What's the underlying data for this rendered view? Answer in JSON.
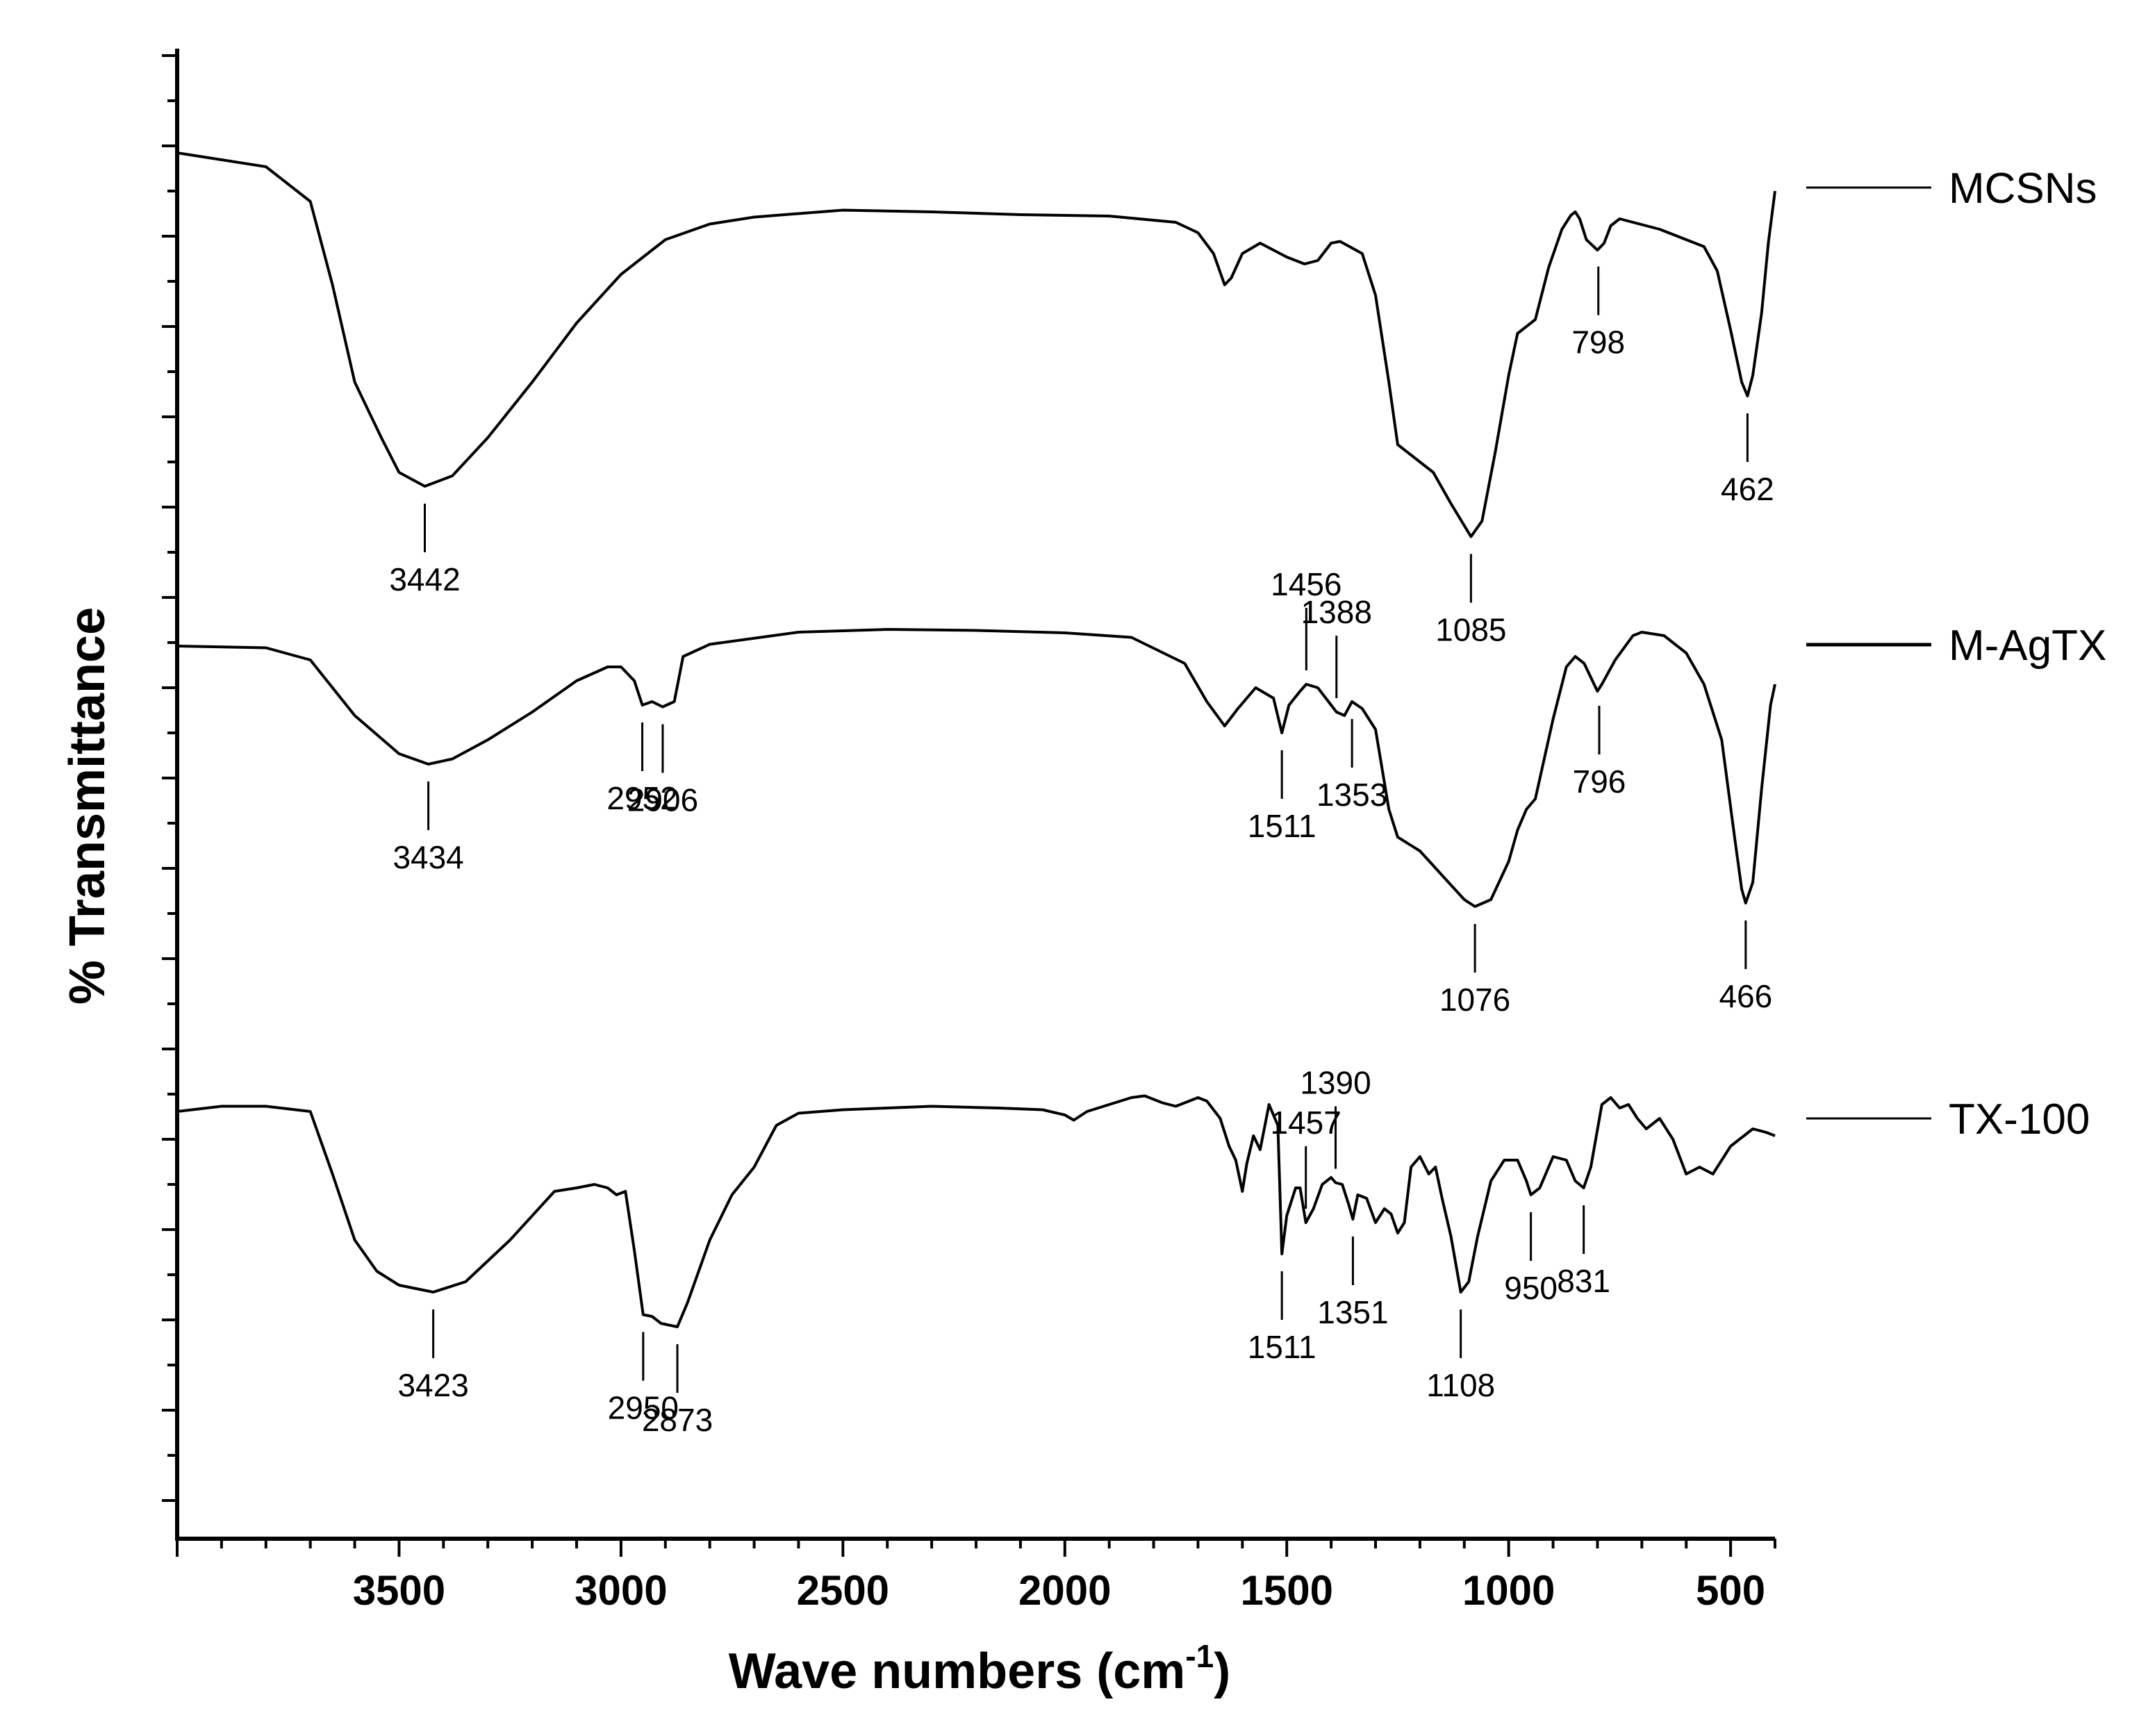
{
  "chart_data": {
    "type": "line",
    "xlabel": "Wave numbers (cm",
    "xlabel_superscript": "-1",
    "xlabel_suffix": ")",
    "ylabel": "% Transmittance",
    "xlim": [
      4000,
      400
    ],
    "x_reversed": true,
    "xticks": [
      "3500",
      "3000",
      "2500",
      "2000",
      "1500",
      "1000",
      "500"
    ],
    "grid": false,
    "legend_placement": "right",
    "series": [
      {
        "name": "MCSNs",
        "points": [
          [
            4000,
            40
          ],
          [
            3800,
            80
          ],
          [
            3700,
            180
          ],
          [
            3650,
            420
          ],
          [
            3600,
            700
          ],
          [
            3540,
            860
          ],
          [
            3500,
            960
          ],
          [
            3442,
            1000
          ],
          [
            3380,
            970
          ],
          [
            3300,
            860
          ],
          [
            3200,
            700
          ],
          [
            3100,
            530
          ],
          [
            3000,
            390
          ],
          [
            2950,
            340
          ],
          [
            2900,
            290
          ],
          [
            2800,
            245
          ],
          [
            2700,
            225
          ],
          [
            2500,
            205
          ],
          [
            2300,
            210
          ],
          [
            2100,
            218
          ],
          [
            1900,
            222
          ],
          [
            1750,
            240
          ],
          [
            1700,
            270
          ],
          [
            1665,
            330
          ],
          [
            1640,
            420
          ],
          [
            1625,
            400
          ],
          [
            1600,
            330
          ],
          [
            1560,
            300
          ],
          [
            1500,
            340
          ],
          [
            1460,
            360
          ],
          [
            1430,
            350
          ],
          [
            1400,
            300
          ],
          [
            1380,
            295
          ],
          [
            1330,
            330
          ],
          [
            1300,
            450
          ],
          [
            1270,
            700
          ],
          [
            1250,
            880
          ],
          [
            1210,
            920
          ],
          [
            1170,
            960
          ],
          [
            1130,
            1050
          ],
          [
            1085,
            1145
          ],
          [
            1060,
            1100
          ],
          [
            1030,
            900
          ],
          [
            1000,
            680
          ],
          [
            980,
            560
          ],
          [
            960,
            540
          ],
          [
            940,
            520
          ],
          [
            910,
            370
          ],
          [
            880,
            260
          ],
          [
            860,
            220
          ],
          [
            850,
            210
          ],
          [
            840,
            230
          ],
          [
            825,
            290
          ],
          [
            800,
            320
          ],
          [
            785,
            300
          ],
          [
            770,
            250
          ],
          [
            750,
            230
          ],
          [
            720,
            240
          ],
          [
            660,
            260
          ],
          [
            600,
            290
          ],
          [
            560,
            310
          ],
          [
            530,
            380
          ],
          [
            500,
            550
          ],
          [
            475,
            700
          ],
          [
            462,
            740
          ],
          [
            450,
            680
          ],
          [
            430,
            500
          ],
          [
            415,
            300
          ],
          [
            400,
            150
          ]
        ],
        "peaks": [
          3442,
          1085,
          798,
          462
        ]
      },
      {
        "name": "M-AgTX",
        "points": [
          [
            4000,
            60
          ],
          [
            3800,
            65
          ],
          [
            3700,
            100
          ],
          [
            3600,
            260
          ],
          [
            3500,
            370
          ],
          [
            3434,
            400
          ],
          [
            3380,
            385
          ],
          [
            3300,
            330
          ],
          [
            3200,
            250
          ],
          [
            3100,
            160
          ],
          [
            3030,
            120
          ],
          [
            3000,
            120
          ],
          [
            2970,
            160
          ],
          [
            2952,
            230
          ],
          [
            2930,
            220
          ],
          [
            2906,
            235
          ],
          [
            2880,
            220
          ],
          [
            2860,
            90
          ],
          [
            2800,
            55
          ],
          [
            2600,
            20
          ],
          [
            2400,
            12
          ],
          [
            2200,
            15
          ],
          [
            2000,
            22
          ],
          [
            1850,
            35
          ],
          [
            1730,
            110
          ],
          [
            1680,
            220
          ],
          [
            1640,
            290
          ],
          [
            1610,
            240
          ],
          [
            1570,
            180
          ],
          [
            1530,
            210
          ],
          [
            1511,
            310
          ],
          [
            1495,
            230
          ],
          [
            1470,
            190
          ],
          [
            1456,
            170
          ],
          [
            1430,
            180
          ],
          [
            1400,
            230
          ],
          [
            1388,
            250
          ],
          [
            1370,
            260
          ],
          [
            1353,
            220
          ],
          [
            1330,
            240
          ],
          [
            1300,
            300
          ],
          [
            1270,
            530
          ],
          [
            1250,
            610
          ],
          [
            1200,
            650
          ],
          [
            1150,
            720
          ],
          [
            1100,
            790
          ],
          [
            1076,
            810
          ],
          [
            1040,
            790
          ],
          [
            1000,
            680
          ],
          [
            980,
            590
          ],
          [
            960,
            530
          ],
          [
            940,
            500
          ],
          [
            900,
            270
          ],
          [
            870,
            120
          ],
          [
            850,
            90
          ],
          [
            830,
            110
          ],
          [
            800,
            190
          ],
          [
            790,
            170
          ],
          [
            760,
            100
          ],
          [
            720,
            30
          ],
          [
            700,
            20
          ],
          [
            650,
            30
          ],
          [
            600,
            80
          ],
          [
            560,
            170
          ],
          [
            520,
            330
          ],
          [
            490,
            620
          ],
          [
            475,
            760
          ],
          [
            466,
            800
          ],
          [
            450,
            740
          ],
          [
            430,
            470
          ],
          [
            410,
            230
          ],
          [
            400,
            170
          ]
        ],
        "peaks": [
          3434,
          2952,
          2906,
          1511,
          1456,
          1388,
          1353,
          1076,
          796,
          466
        ]
      },
      {
        "name": "TX-100",
        "points": [
          [
            4000,
            100
          ],
          [
            3900,
            85
          ],
          [
            3800,
            85
          ],
          [
            3700,
            100
          ],
          [
            3650,
            280
          ],
          [
            3600,
            470
          ],
          [
            3550,
            560
          ],
          [
            3500,
            600
          ],
          [
            3423,
            620
          ],
          [
            3350,
            590
          ],
          [
            3250,
            470
          ],
          [
            3150,
            330
          ],
          [
            3100,
            320
          ],
          [
            3060,
            310
          ],
          [
            3030,
            320
          ],
          [
            3010,
            340
          ],
          [
            2990,
            330
          ],
          [
            2970,
            500
          ],
          [
            2950,
            685
          ],
          [
            2930,
            690
          ],
          [
            2910,
            710
          ],
          [
            2873,
            720
          ],
          [
            2850,
            650
          ],
          [
            2800,
            470
          ],
          [
            2750,
            340
          ],
          [
            2700,
            260
          ],
          [
            2650,
            140
          ],
          [
            2600,
            105
          ],
          [
            2500,
            95
          ],
          [
            2400,
            90
          ],
          [
            2300,
            85
          ],
          [
            2150,
            90
          ],
          [
            2050,
            95
          ],
          [
            2000,
            110
          ],
          [
            1980,
            125
          ],
          [
            1950,
            100
          ],
          [
            1900,
            80
          ],
          [
            1850,
            60
          ],
          [
            1820,
            55
          ],
          [
            1780,
            75
          ],
          [
            1750,
            85
          ],
          [
            1720,
            70
          ],
          [
            1700,
            60
          ],
          [
            1680,
            70
          ],
          [
            1650,
            120
          ],
          [
            1630,
            200
          ],
          [
            1615,
            240
          ],
          [
            1600,
            330
          ],
          [
            1590,
            250
          ],
          [
            1575,
            170
          ],
          [
            1560,
            210
          ],
          [
            1540,
            80
          ],
          [
            1520,
            140
          ],
          [
            1511,
            510
          ],
          [
            1500,
            400
          ],
          [
            1480,
            320
          ],
          [
            1470,
            320
          ],
          [
            1457,
            420
          ],
          [
            1440,
            380
          ],
          [
            1420,
            310
          ],
          [
            1400,
            290
          ],
          [
            1390,
            305
          ],
          [
            1375,
            310
          ],
          [
            1360,
            370
          ],
          [
            1351,
            410
          ],
          [
            1340,
            340
          ],
          [
            1320,
            350
          ],
          [
            1300,
            420
          ],
          [
            1280,
            380
          ],
          [
            1265,
            395
          ],
          [
            1250,
            450
          ],
          [
            1235,
            420
          ],
          [
            1220,
            260
          ],
          [
            1200,
            230
          ],
          [
            1180,
            280
          ],
          [
            1165,
            260
          ],
          [
            1150,
            350
          ],
          [
            1130,
            460
          ],
          [
            1108,
            620
          ],
          [
            1090,
            590
          ],
          [
            1070,
            460
          ],
          [
            1040,
            300
          ],
          [
            1010,
            240
          ],
          [
            980,
            240
          ],
          [
            960,
            300
          ],
          [
            950,
            340
          ],
          [
            930,
            320
          ],
          [
            900,
            230
          ],
          [
            870,
            240
          ],
          [
            850,
            300
          ],
          [
            831,
            320
          ],
          [
            815,
            260
          ],
          [
            790,
            80
          ],
          [
            770,
            60
          ],
          [
            750,
            90
          ],
          [
            730,
            80
          ],
          [
            710,
            120
          ],
          [
            690,
            150
          ],
          [
            660,
            120
          ],
          [
            630,
            180
          ],
          [
            600,
            280
          ],
          [
            570,
            260
          ],
          [
            540,
            280
          ],
          [
            500,
            200
          ],
          [
            450,
            150
          ],
          [
            420,
            160
          ],
          [
            400,
            170
          ]
        ],
        "peaks": [
          3423,
          2950,
          2873,
          1511,
          1457,
          1390,
          1351,
          1108,
          950,
          831
        ]
      }
    ]
  },
  "peak_labels": {
    "MCSNs": [
      "3442",
      "1085",
      "798",
      "462"
    ],
    "M-AgTX": [
      "3434",
      "2952",
      "2906",
      "1511",
      "1456",
      "1388",
      "1353",
      "1076",
      "796",
      "466"
    ],
    "TX-100": [
      "3423",
      "2950",
      "2873",
      "1511",
      "1457",
      "1390",
      "1351",
      "1108",
      "950",
      "831"
    ]
  },
  "legend": [
    "MCSNs",
    "M-AgTX",
    "TX-100"
  ]
}
